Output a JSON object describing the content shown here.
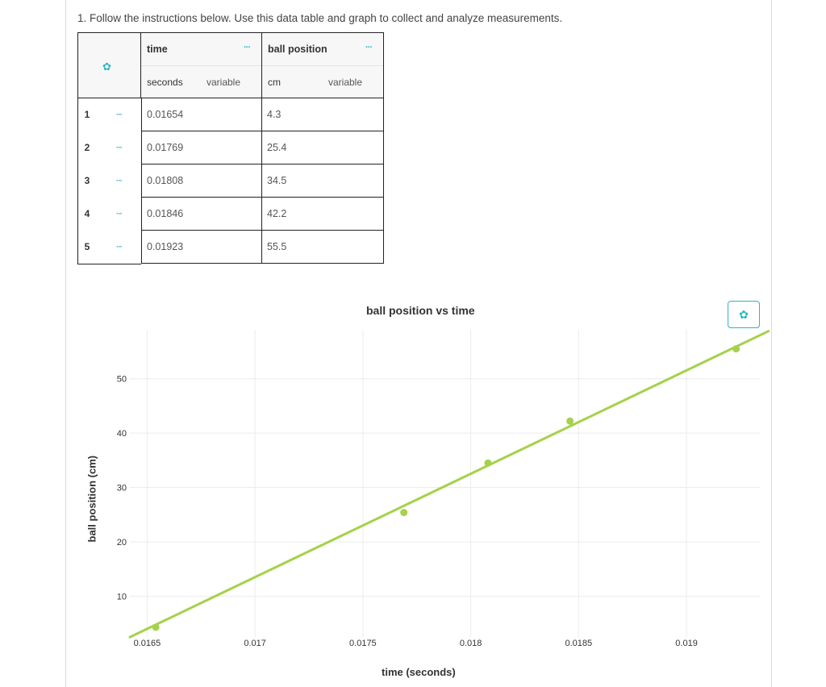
{
  "instructions": "1. Follow the instructions below. Use this data table and graph to collect and analyze measurements.",
  "table": {
    "settings_icon": "gear-icon",
    "columns": [
      {
        "name": "time",
        "unit": "seconds",
        "tag": "variable",
        "menu": "···"
      },
      {
        "name": "ball position",
        "unit": "cm",
        "tag": "variable",
        "menu": "···"
      }
    ],
    "rows": [
      {
        "num": "1",
        "menu": "···",
        "time": "0.01654",
        "position": "4.3"
      },
      {
        "num": "2",
        "menu": "···",
        "time": "0.01769",
        "position": "25.4"
      },
      {
        "num": "3",
        "menu": "···",
        "time": "0.01808",
        "position": "34.5"
      },
      {
        "num": "4",
        "menu": "···",
        "time": "0.01846",
        "position": "42.2"
      },
      {
        "num": "5",
        "menu": "···",
        "time": "0.01923",
        "position": "55.5"
      }
    ]
  },
  "chart_data": {
    "type": "scatter",
    "title": "ball position vs time",
    "xlabel": "time (seconds)",
    "ylabel": "ball position (cm)",
    "x": [
      0.01654,
      0.01769,
      0.01808,
      0.01846,
      0.01923
    ],
    "y": [
      4.3,
      25.4,
      34.5,
      42.2,
      55.5
    ],
    "xlim": [
      0.01642,
      0.01934
    ],
    "ylim": [
      2.5,
      59
    ],
    "xticks": [
      0.0165,
      0.017,
      0.0175,
      0.018,
      0.0185,
      0.019
    ],
    "xtick_labels": [
      "0.0165",
      "0.017",
      "0.0175",
      "0.018",
      "0.0185",
      "0.019"
    ],
    "yticks": [
      10,
      20,
      30,
      40,
      50
    ],
    "ytick_labels": [
      "10",
      "20",
      "30",
      "40",
      "50"
    ],
    "fit_line": {
      "type": "linear",
      "slope": 19012,
      "intercept": -309.7
    },
    "grid": true,
    "color": "#a5d24a"
  },
  "settings_button_icon": "gear-icon"
}
